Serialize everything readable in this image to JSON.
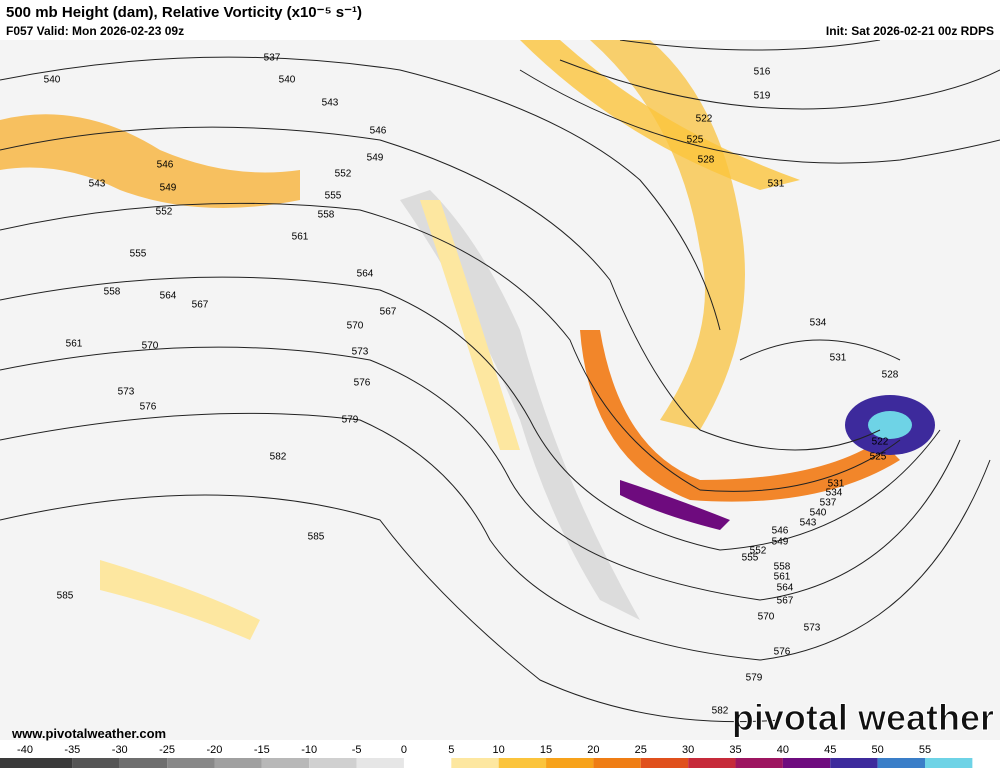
{
  "header": {
    "title": "500 mb Height (dam), Relative Vorticity (x10⁻⁵ s⁻¹)",
    "valid": "F057 Valid: Mon 2026-02-23 09z",
    "init": "Init: Sat 2026-02-21 00z RDPS"
  },
  "contour_labels": [
    537,
    540,
    540,
    543,
    546,
    549,
    546,
    549,
    543,
    552,
    555,
    552,
    558,
    561,
    555,
    564,
    558,
    564,
    567,
    567,
    570,
    573,
    561,
    570,
    573,
    576,
    576,
    579,
    582,
    585,
    585,
    516,
    519,
    522,
    525,
    528,
    531,
    534,
    531,
    528,
    522,
    525,
    531,
    534,
    537,
    540,
    543,
    546,
    549,
    552,
    555,
    558,
    561,
    564,
    567,
    570,
    573,
    576,
    579,
    582
  ],
  "colorbar": {
    "ticks": [
      -40,
      -35,
      -30,
      -25,
      -20,
      -15,
      -10,
      -5,
      0,
      5,
      10,
      15,
      20,
      25,
      30,
      35,
      40,
      45,
      50,
      55
    ],
    "colors": [
      "#3a3a3a",
      "#555555",
      "#6e6e6e",
      "#888888",
      "#a0a0a0",
      "#b8b8b8",
      "#d0d0d0",
      "#e6e6e6",
      "#ffffff",
      "#fde7a0",
      "#fbc43c",
      "#f7a21a",
      "#ef7d14",
      "#e0501c",
      "#c62a3a",
      "#9d1560",
      "#6e0b7e",
      "#3d2a9c",
      "#3a7ec8",
      "#6ed3e6"
    ]
  },
  "footer": {
    "website": "www.pivotalweather.com",
    "logo": "pivotal weather"
  }
}
